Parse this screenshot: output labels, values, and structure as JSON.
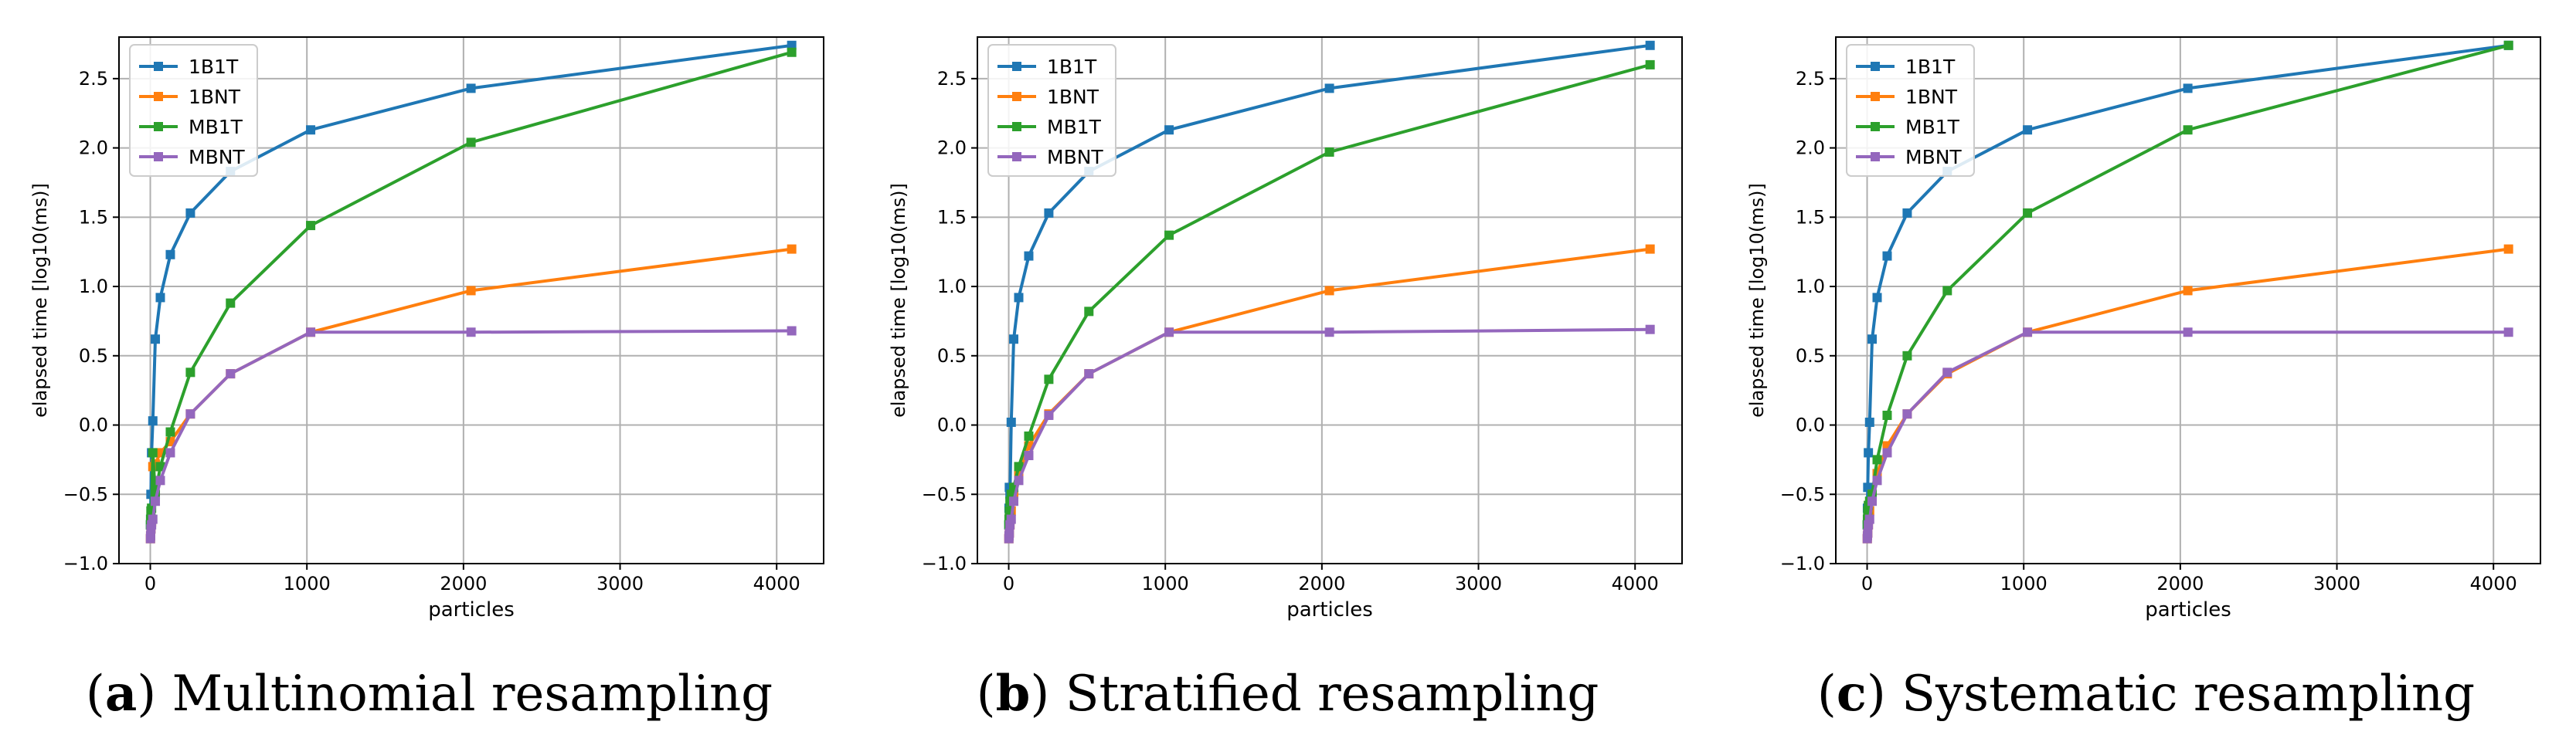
{
  "colors": {
    "1B1T": "#1f77b4",
    "1BNT": "#ff7f0e",
    "MB1T": "#2ca02c",
    "MBNT": "#9467bd",
    "grid": "#b0b0b0"
  },
  "chart_data": [
    {
      "type": "line",
      "caption_letter": "a",
      "caption_rest": ") Multinomial resampling",
      "caption_open": "(",
      "xlabel": "particles",
      "ylabel": "elapsed time [log10(ms)]",
      "xlim": [
        -200,
        4300
      ],
      "ylim": [
        -1.0,
        2.8
      ],
      "xticks": [
        "0",
        "1000",
        "2000",
        "3000",
        "4000"
      ],
      "yticks": [
        "−1.0",
        "−0.5",
        "0.0",
        "0.5",
        "1.0",
        "1.5",
        "2.0",
        "2.5"
      ],
      "legend_position": "top-left",
      "x": [
        1,
        2,
        4,
        8,
        16,
        32,
        64,
        128,
        256,
        512,
        1024,
        2048,
        4096
      ],
      "series": [
        {
          "name": "1B1T",
          "values": [
            -0.72,
            -0.68,
            -0.5,
            -0.2,
            0.03,
            0.62,
            0.92,
            1.23,
            1.53,
            1.83,
            2.13,
            2.43,
            2.74
          ]
        },
        {
          "name": "1BNT",
          "values": [
            -0.82,
            -0.8,
            -0.75,
            -0.7,
            -0.3,
            -0.28,
            -0.2,
            -0.12,
            0.08,
            0.37,
            0.67,
            0.97,
            1.27
          ]
        },
        {
          "name": "MB1T",
          "values": [
            -0.72,
            -0.68,
            -0.62,
            -0.6,
            -0.2,
            -0.5,
            -0.3,
            -0.05,
            0.38,
            0.88,
            1.44,
            2.04,
            2.69
          ]
        },
        {
          "name": "MBNT",
          "values": [
            -0.82,
            -0.8,
            -0.75,
            -0.72,
            -0.68,
            -0.55,
            -0.4,
            -0.2,
            0.08,
            0.37,
            0.67,
            0.67,
            0.68
          ]
        }
      ]
    },
    {
      "type": "line",
      "caption_letter": "b",
      "caption_rest": ") Stratified resampling",
      "caption_open": "(",
      "xlabel": "particles",
      "ylabel": "elapsed time [log10(ms)]",
      "xlim": [
        -200,
        4300
      ],
      "ylim": [
        -1.0,
        2.8
      ],
      "xticks": [
        "0",
        "1000",
        "2000",
        "3000",
        "4000"
      ],
      "yticks": [
        "−1.0",
        "−0.5",
        "0.0",
        "0.5",
        "1.0",
        "1.5",
        "2.0",
        "2.5"
      ],
      "legend_position": "top-left",
      "x": [
        1,
        2,
        4,
        8,
        16,
        32,
        64,
        128,
        256,
        512,
        1024,
        2048,
        4096
      ],
      "series": [
        {
          "name": "1B1T",
          "values": [
            -0.72,
            -0.6,
            -0.45,
            -0.5,
            0.02,
            0.62,
            0.92,
            1.22,
            1.53,
            1.83,
            2.13,
            2.43,
            2.74
          ]
        },
        {
          "name": "1BNT",
          "values": [
            -0.82,
            -0.8,
            -0.78,
            -0.72,
            -0.62,
            -0.5,
            -0.35,
            -0.15,
            0.08,
            0.37,
            0.67,
            0.97,
            1.27
          ]
        },
        {
          "name": "MB1T",
          "values": [
            -0.72,
            -0.68,
            -0.62,
            -0.55,
            -0.5,
            -0.45,
            -0.3,
            -0.08,
            0.33,
            0.82,
            1.37,
            1.97,
            2.6
          ]
        },
        {
          "name": "MBNT",
          "values": [
            -0.82,
            -0.8,
            -0.78,
            -0.72,
            -0.68,
            -0.55,
            -0.4,
            -0.22,
            0.07,
            0.37,
            0.67,
            0.67,
            0.69
          ]
        }
      ]
    },
    {
      "type": "line",
      "caption_letter": "c",
      "caption_rest": ") Systematic resampling",
      "caption_open": "(",
      "xlabel": "particles",
      "ylabel": "elapsed time [log10(ms)]",
      "xlim": [
        -200,
        4300
      ],
      "ylim": [
        -1.0,
        2.8
      ],
      "xticks": [
        "0",
        "1000",
        "2000",
        "3000",
        "4000"
      ],
      "yticks": [
        "−1.0",
        "−0.5",
        "0.0",
        "0.5",
        "1.0",
        "1.5",
        "2.0",
        "2.5"
      ],
      "legend_position": "top-left",
      "x": [
        1,
        2,
        4,
        8,
        16,
        32,
        64,
        128,
        256,
        512,
        1024,
        2048,
        4096
      ],
      "series": [
        {
          "name": "1B1T",
          "values": [
            -0.72,
            -0.6,
            -0.45,
            -0.2,
            0.02,
            0.62,
            0.92,
            1.22,
            1.53,
            1.83,
            2.13,
            2.43,
            2.74
          ]
        },
        {
          "name": "1BNT",
          "values": [
            -0.82,
            -0.8,
            -0.78,
            -0.72,
            -0.62,
            -0.5,
            -0.35,
            -0.15,
            0.08,
            0.37,
            0.67,
            0.97,
            1.27
          ]
        },
        {
          "name": "MB1T",
          "values": [
            -0.72,
            -0.68,
            -0.62,
            -0.58,
            -0.55,
            -0.5,
            -0.25,
            0.07,
            0.5,
            0.97,
            1.53,
            2.13,
            2.74
          ]
        },
        {
          "name": "MBNT",
          "values": [
            -0.82,
            -0.8,
            -0.78,
            -0.72,
            -0.68,
            -0.55,
            -0.4,
            -0.2,
            0.08,
            0.38,
            0.67,
            0.67,
            0.67
          ]
        }
      ]
    }
  ]
}
